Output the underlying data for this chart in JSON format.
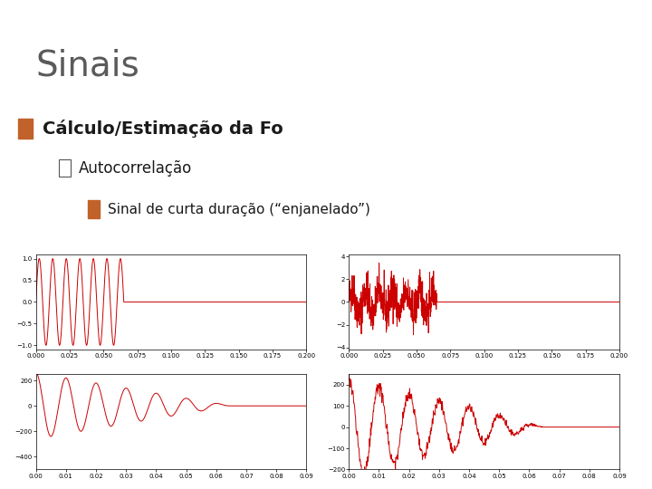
{
  "title": "Sinais",
  "title_color": "#5a5a5a",
  "title_fontsize": 28,
  "header_bar_color": "#8aa4bf",
  "header_orange_color": "#c0622a",
  "bullet1_text": "Cálculo/Estimação da Fo",
  "bullet1_color": "#1a1a1a",
  "bullet1_box_color": "#c0622a",
  "bullet2_text": "□ Autocorrelação",
  "bullet2_color": "#1a1a1a",
  "bullet3_text": "Sinal de curta duração (“enjanelado”)",
  "bullet3_color": "#1a1a1a",
  "bullet3_box_color": "#c0622a",
  "signal_color": "#cc0000",
  "bg_color": "#ffffff",
  "plot1_xlim": [
    0,
    0.2
  ],
  "plot1_ylim": [
    -1.1,
    1.1
  ],
  "plot2_xlim": [
    0,
    0.2
  ],
  "plot2_ylim": [
    -4.2,
    4.2
  ],
  "plot3_xlim": [
    0,
    0.09
  ],
  "plot3_ylim": [
    -500,
    250
  ],
  "plot4_xlim": [
    0,
    0.09
  ],
  "plot4_ylim": [
    -200,
    250
  ],
  "sine_freq": 100,
  "sine_duration": 0.065,
  "total_duration": 0.2,
  "sample_rate": 8000,
  "noise_level": 0.9
}
